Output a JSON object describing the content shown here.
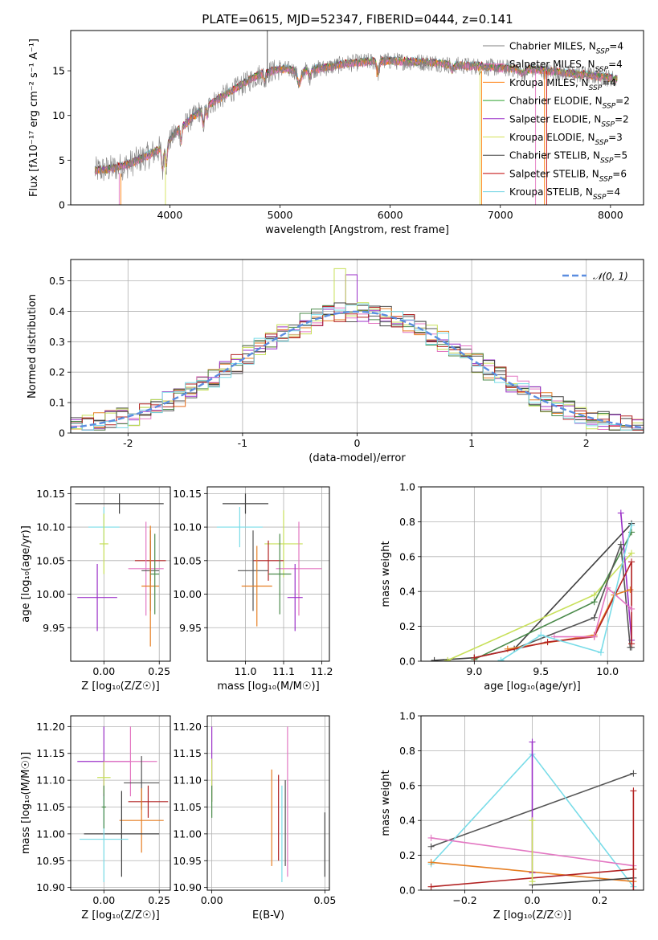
{
  "figure": {
    "title": "PLATE=0615, MJD=52347, FIBERID=0444, z=0.141"
  },
  "colors": {
    "series": [
      "#808080",
      "#e377c2",
      "#ff7f0e",
      "#2ca02c",
      "#9b30c8",
      "#d4e157",
      "#404040",
      "#c00000",
      "#6fd3e3"
    ],
    "fit": [
      "#555555",
      "#e377c2",
      "#e67e22",
      "#4a8a4a",
      "#9b30c8",
      "#c8e05a",
      "#404040",
      "#b22222",
      "#79dce8"
    ],
    "gaussian": "#5b8de0",
    "grid": "#b0b0b0"
  },
  "chart_data": [
    {
      "type": "line",
      "panel": "spectrum",
      "xlabel": "wavelength [Angstrom, rest frame]",
      "ylabel": "Flux [f$_\\lambda$10$^{-17}$ erg cm$^{-2}$ s$^{-1}$ A$^{-1}$]",
      "ylabel_text": "Flux [fλ10⁻¹⁷ erg cm⁻² s⁻¹ A⁻¹]",
      "xlim": [
        3100,
        8300
      ],
      "ylim": [
        0,
        19.5
      ],
      "xticks": [
        4000,
        5000,
        6000,
        7000,
        8000
      ],
      "yticks": [
        0,
        5,
        10,
        15
      ],
      "grid": false,
      "legend_position": "top-right",
      "series": [
        {
          "name": "Chabrier MILES, N_SSP=4",
          "legend": "Chabrier MILES, N",
          "sub": "SSP",
          "suffix": "=4"
        },
        {
          "name": "Salpeter MILES, N_SSP=4",
          "legend": "Salpeter MILES, N",
          "sub": "SSP",
          "suffix": "=4"
        },
        {
          "name": "Kroupa MILES, N_SSP=4",
          "legend": "Kroupa MILES, N",
          "sub": "SSP",
          "suffix": "=4"
        },
        {
          "name": "Chabrier ELODIE, N_SSP=2",
          "legend": "Chabrier ELODIE, N",
          "sub": "SSP",
          "suffix": "=2"
        },
        {
          "name": "Salpeter ELODIE, N_SSP=2",
          "legend": "Salpeter ELODIE, N",
          "sub": "SSP",
          "suffix": "=2"
        },
        {
          "name": "Kroupa ELODIE, N_SSP=3",
          "legend": "Kroupa ELODIE, N",
          "sub": "SSP",
          "suffix": "=3"
        },
        {
          "name": "Chabrier STELIB, N_SSP=5",
          "legend": "Chabrier STELIB, N",
          "sub": "SSP",
          "suffix": "=5"
        },
        {
          "name": "Salpeter STELIB, N_SSP=6",
          "legend": "Salpeter STELIB, N",
          "sub": "SSP",
          "suffix": "=6"
        },
        {
          "name": "Kroupa STELIB, N_SSP=4",
          "legend": "Kroupa STELIB, N",
          "sub": "SSP",
          "suffix": "=4"
        }
      ],
      "continuum_knots": {
        "x": [
          3300,
          3450,
          3600,
          3800,
          3950,
          4050,
          4300,
          4600,
          4800,
          5000,
          5200,
          5400,
          5600,
          5800,
          6000,
          6200,
          6400,
          6600,
          6800,
          7000,
          7200,
          7400,
          7600,
          7800,
          8050
        ],
        "y": [
          3.8,
          4.0,
          4.4,
          5.5,
          6.5,
          8.0,
          10.8,
          13.0,
          14.5,
          15.2,
          15.0,
          15.3,
          15.8,
          16.0,
          16.1,
          16.0,
          15.9,
          15.6,
          15.5,
          15.3,
          15.2,
          15.0,
          14.7,
          14.5,
          14.1
        ]
      }
    },
    {
      "type": "histogram",
      "panel": "residuals",
      "xlabel": "(data-model)/error",
      "ylabel": "Normed distribution",
      "xlim": [
        -2.5,
        2.5
      ],
      "ylim": [
        0,
        0.57
      ],
      "xticks": [
        -2,
        -1,
        0,
        1,
        2
      ],
      "yticks": [
        0.0,
        0.1,
        0.2,
        0.3,
        0.4,
        0.5
      ],
      "grid": true,
      "bin_width": 0.1,
      "reference": {
        "name": "𝒩(0, 1)",
        "legend_position": "top-right"
      }
    },
    {
      "type": "scatter",
      "panel": "age_vs_Z",
      "xlabel": "Z [log₁₀(Z/Z☉)]",
      "ylabel": "age  [log₁₀(age/yr)]",
      "xlim": [
        -0.15,
        0.3
      ],
      "ylim": [
        9.9,
        10.16
      ],
      "xticks": [
        0.0,
        0.25
      ],
      "xtick_labels": [
        "0.00",
        "0.25"
      ],
      "yticks": [
        9.95,
        10.0,
        10.05,
        10.1,
        10.15
      ],
      "yticks_labels": [
        "9.95",
        "10.00",
        "10.05",
        "10.10",
        "10.15"
      ],
      "grid": true,
      "points": [
        {
          "x": 0.07,
          "xerr": 0.2,
          "y": 10.135,
          "yerr": 0.015,
          "series": 6
        },
        {
          "x": 0.0,
          "xerr": 0.07,
          "y": 10.1,
          "yerr": 0.03,
          "series": 8
        },
        {
          "x": 0.0,
          "xerr": 0.02,
          "y": 10.075,
          "yerr": 0.045,
          "series": 5
        },
        {
          "x": 0.21,
          "xerr": 0.07,
          "y": 10.05,
          "yerr": 0.03,
          "series": 7
        },
        {
          "x": 0.19,
          "xerr": 0.08,
          "y": 10.038,
          "yerr": 0.07,
          "series": 1
        },
        {
          "x": 0.21,
          "xerr": 0.04,
          "y": 10.035,
          "yerr": 0.06,
          "series": 0
        },
        {
          "x": 0.21,
          "xerr": 0.04,
          "y": 10.012,
          "yerr": 0.09,
          "series": 2
        },
        {
          "x": -0.03,
          "xerr": 0.09,
          "y": 9.995,
          "yerr": 0.05,
          "series": 4
        },
        {
          "x": 0.23,
          "xerr": 0.02,
          "y": 10.03,
          "yerr": 0.06,
          "series": 3
        }
      ]
    },
    {
      "type": "scatter",
      "panel": "age_vs_mass",
      "xlabel": "mass [log₁₀(M/M☉)]",
      "ylabel": "",
      "xlim": [
        10.9,
        11.22
      ],
      "ylim": [
        9.9,
        10.16
      ],
      "xticks": [
        11.0,
        11.1,
        11.2
      ],
      "xtick_labels": [
        "11.0",
        "11.1",
        "11.2"
      ],
      "yticks": [
        9.95,
        10.0,
        10.05,
        10.1,
        10.15
      ],
      "yticks_labels": [
        "9.95",
        "10.00",
        "10.05",
        "10.10",
        "10.15"
      ],
      "grid": true,
      "points": [
        {
          "x": 11.0,
          "xerr": 0.06,
          "y": 10.135,
          "yerr": 0.015,
          "series": 6
        },
        {
          "x": 10.985,
          "xerr": 0.06,
          "y": 10.1,
          "yerr": 0.03,
          "series": 8
        },
        {
          "x": 11.1,
          "xerr": 0.05,
          "y": 10.075,
          "yerr": 0.05,
          "series": 5
        },
        {
          "x": 11.06,
          "xerr": 0.04,
          "y": 10.05,
          "yerr": 0.03,
          "series": 7
        },
        {
          "x": 11.14,
          "xerr": 0.06,
          "y": 10.038,
          "yerr": 0.07,
          "series": 1
        },
        {
          "x": 11.02,
          "xerr": 0.04,
          "y": 10.035,
          "yerr": 0.06,
          "series": 0
        },
        {
          "x": 11.03,
          "xerr": 0.04,
          "y": 10.012,
          "yerr": 0.06,
          "series": 2
        },
        {
          "x": 11.13,
          "xerr": 0.02,
          "y": 9.995,
          "yerr": 0.05,
          "series": 4
        },
        {
          "x": 11.09,
          "xerr": 0.03,
          "y": 10.03,
          "yerr": 0.06,
          "series": 3
        }
      ]
    },
    {
      "type": "line",
      "panel": "weight_vs_age",
      "xlabel": "age  [log₁₀(age/yr)]",
      "ylabel": "mass weight",
      "xlim": [
        8.6,
        10.27
      ],
      "ylim": [
        0.0,
        1.0
      ],
      "xticks": [
        9.0,
        9.5,
        10.0
      ],
      "xtick_labels": [
        "9.0",
        "9.5",
        "10.0"
      ],
      "yticks": [
        0.0,
        0.2,
        0.4,
        0.6,
        0.8,
        1.0
      ],
      "ytick_labels": [
        "0.0",
        "0.2",
        "0.4",
        "0.6",
        "0.8",
        "1.0"
      ],
      "grid": true,
      "series": [
        {
          "color_index": 6,
          "x": [
            8.7,
            9.0,
            9.3,
            10.18
          ],
          "y": [
            0.005,
            0.02,
            0.07,
            0.79
          ]
        },
        {
          "color_index": 5,
          "x": [
            8.8,
            9.9,
            10.18
          ],
          "y": [
            0.005,
            0.38,
            0.62
          ]
        },
        {
          "color_index": 3,
          "x": [
            9.0,
            9.9,
            10.18
          ],
          "y": [
            0.01,
            0.34,
            0.74
          ]
        },
        {
          "color_index": 4,
          "x": [
            10.1,
            10.18
          ],
          "y": [
            0.85,
            0.12
          ]
        },
        {
          "color_index": 0,
          "x": [
            9.3,
            9.9,
            10.1,
            10.17,
            10.18
          ],
          "y": [
            0.07,
            0.25,
            0.67,
            0.08,
            0.08
          ]
        },
        {
          "color_index": 2,
          "x": [
            9.25,
            9.9,
            10.05,
            10.17
          ],
          "y": [
            0.07,
            0.15,
            0.38,
            0.41
          ]
        },
        {
          "color_index": 7,
          "x": [
            9.0,
            9.55,
            9.9,
            10.18,
            10.18
          ],
          "y": [
            0.02,
            0.11,
            0.14,
            0.57,
            0.1
          ]
        },
        {
          "color_index": 1,
          "x": [
            9.6,
            9.9,
            10.0,
            10.18
          ],
          "y": [
            0.14,
            0.14,
            0.42,
            0.3
          ]
        },
        {
          "color_index": 8,
          "x": [
            9.2,
            9.5,
            9.95,
            10.18
          ],
          "y": [
            0.005,
            0.15,
            0.05,
            0.78
          ]
        }
      ]
    },
    {
      "type": "scatter",
      "panel": "mass_vs_Z",
      "xlabel": "Z [log₁₀(Z/Z☉)]",
      "ylabel": "mass [log₁₀(M/M☉)]",
      "xlim": [
        -0.15,
        0.3
      ],
      "ylim": [
        10.895,
        11.22
      ],
      "xticks": [
        0.0,
        0.25
      ],
      "xtick_labels": [
        "0.00",
        "0.25"
      ],
      "yticks": [
        10.9,
        10.95,
        11.0,
        11.05,
        11.1,
        11.15,
        11.2
      ],
      "yticks_labels": [
        "10.90",
        "10.95",
        "11.00",
        "11.05",
        "11.10",
        "11.15",
        "11.20"
      ],
      "grid": true,
      "points": [
        {
          "x": 0.0,
          "xerr": 0.12,
          "y": 11.135,
          "yerr": 0.065,
          "series": 4
        },
        {
          "x": 0.12,
          "xerr": 0.12,
          "y": 11.135,
          "yerr": 0.065,
          "series": 1
        },
        {
          "x": 0.0,
          "xerr": 0.03,
          "y": 11.105,
          "yerr": 0.03,
          "series": 5
        },
        {
          "x": 0.17,
          "xerr": 0.08,
          "y": 11.095,
          "yerr": 0.05,
          "series": 0
        },
        {
          "x": 0.2,
          "xerr": 0.09,
          "y": 11.06,
          "yerr": 0.03,
          "series": 7
        },
        {
          "x": 0.17,
          "xerr": 0.1,
          "y": 11.025,
          "yerr": 0.06,
          "series": 2
        },
        {
          "x": 0.08,
          "xerr": 0.17,
          "y": 11.0,
          "yerr": 0.08,
          "series": 6
        },
        {
          "x": 0.0,
          "xerr": 0.11,
          "y": 10.99,
          "yerr": 0.08,
          "series": 8
        },
        {
          "x": 0.0,
          "xerr": 0.01,
          "y": 11.05,
          "yerr": 0.04,
          "series": 3
        }
      ]
    },
    {
      "type": "scatter",
      "panel": "mass_vs_EBV",
      "xlabel": "E(B-V)",
      "ylabel": "",
      "xlim": [
        -0.002,
        0.052
      ],
      "ylim": [
        10.895,
        11.22
      ],
      "xticks": [
        0.0,
        0.05
      ],
      "xtick_labels": [
        "0.00",
        "0.05"
      ],
      "yticks": [
        10.9,
        10.95,
        11.0,
        11.05,
        11.1,
        11.15,
        11.2
      ],
      "yticks_labels": [
        "10.90",
        "10.95",
        "11.00",
        "11.05",
        "11.10",
        "11.15",
        "11.20"
      ],
      "grid": true,
      "points": [
        {
          "x": 0.0,
          "y": 11.13,
          "yerr": 0.07,
          "series": 4
        },
        {
          "x": 0.0,
          "y": 11.1,
          "yerr": 0.04,
          "series": 5
        },
        {
          "x": 0.0,
          "y": 11.06,
          "yerr": 0.03,
          "series": 3
        },
        {
          "x": 0.0265,
          "y": 11.03,
          "yerr": 0.09,
          "series": 2
        },
        {
          "x": 0.0295,
          "y": 11.03,
          "yerr": 0.08,
          "series": 7
        },
        {
          "x": 0.031,
          "y": 11.0,
          "yerr": 0.09,
          "series": 8
        },
        {
          "x": 0.0325,
          "y": 11.02,
          "yerr": 0.08,
          "series": 0
        },
        {
          "x": 0.0335,
          "y": 11.06,
          "yerr": 0.14,
          "series": 1
        },
        {
          "x": 0.05,
          "y": 10.98,
          "yerr": 0.06,
          "series": 6
        }
      ]
    },
    {
      "type": "line",
      "panel": "weight_vs_Z",
      "xlabel": "Z [log₁₀(Z/Z☉)]",
      "ylabel": "mass weight",
      "xlim": [
        -0.33,
        0.33
      ],
      "ylim": [
        0.0,
        1.0
      ],
      "xticks": [
        -0.2,
        0.0,
        0.2
      ],
      "xtick_labels": [
        "−0.2",
        "0.0",
        "0.2"
      ],
      "yticks": [
        0.0,
        0.2,
        0.4,
        0.6,
        0.8,
        1.0
      ],
      "ytick_labels": [
        "0.0",
        "0.2",
        "0.4",
        "0.6",
        "0.8",
        "1.0"
      ],
      "grid": true,
      "series": [
        {
          "color_index": 0,
          "x": [
            -0.3,
            0.3
          ],
          "y": [
            0.25,
            0.67
          ]
        },
        {
          "color_index": 8,
          "x": [
            -0.3,
            0.0,
            0.3
          ],
          "y": [
            0.15,
            0.78,
            0.02
          ]
        },
        {
          "color_index": 1,
          "x": [
            -0.3,
            0.3
          ],
          "y": [
            0.3,
            0.14
          ]
        },
        {
          "color_index": 2,
          "x": [
            -0.3,
            0.3
          ],
          "y": [
            0.16,
            0.05
          ]
        },
        {
          "color_index": 6,
          "x": [
            0.0,
            0.3
          ],
          "y": [
            0.03,
            0.07
          ]
        },
        {
          "color_index": 7,
          "x": [
            -0.3,
            0.3
          ],
          "y": [
            0.02,
            0.12
          ]
        },
        {
          "color_index": 4,
          "x": [
            0.0,
            0.0
          ],
          "y": [
            0.1,
            0.85
          ]
        },
        {
          "color_index": 5,
          "x": [
            0.0,
            0.0
          ],
          "y": [
            0.05,
            0.4
          ]
        },
        {
          "color_index": 7,
          "x": [
            0.3,
            0.3
          ],
          "y": [
            0.0,
            0.57
          ]
        }
      ]
    }
  ]
}
